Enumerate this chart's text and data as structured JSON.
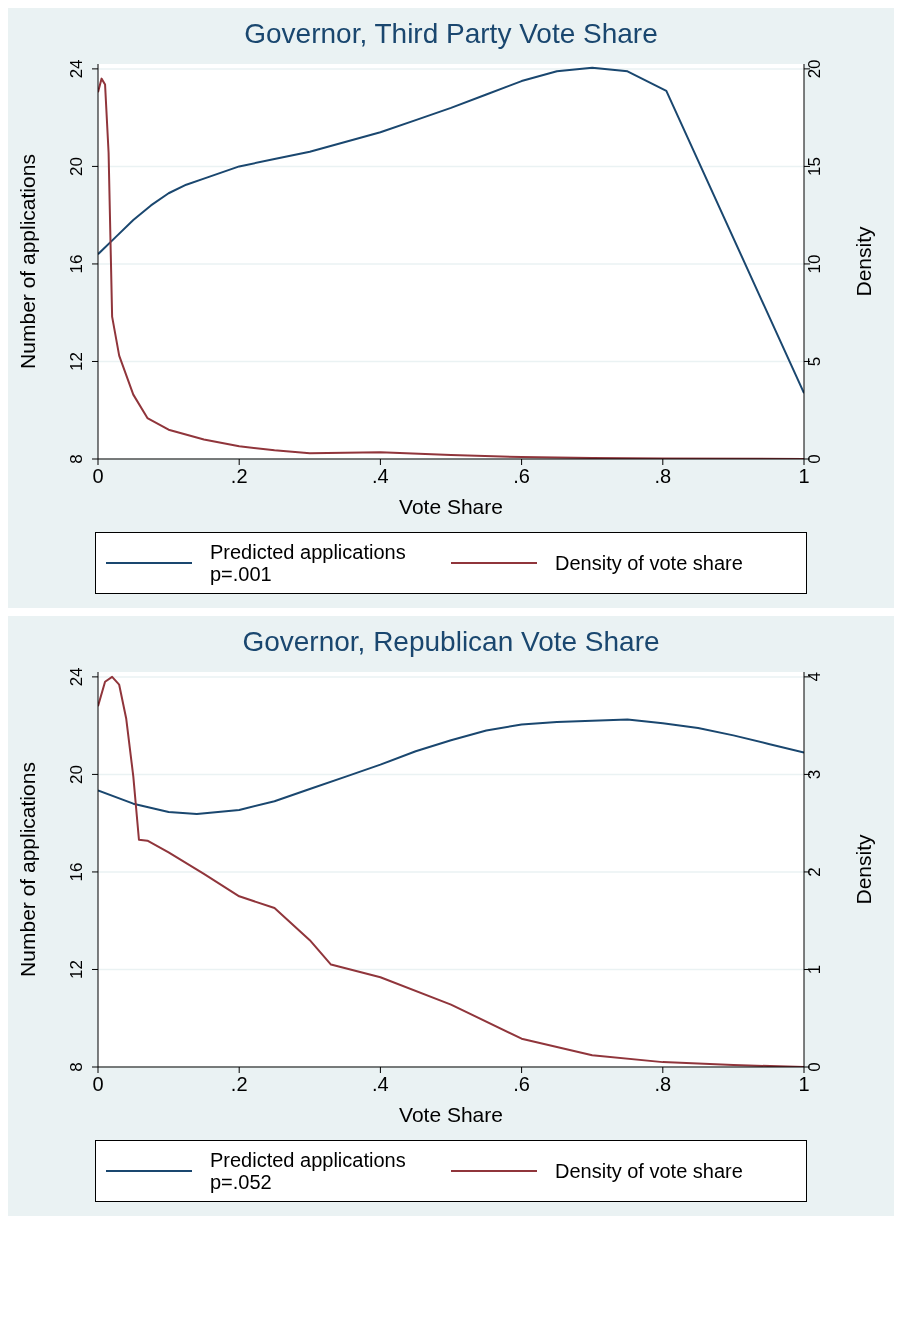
{
  "chart_data": [
    {
      "type": "line",
      "title": "Governor, Third Party Vote Share",
      "xlabel": "Vote Share",
      "ylabel": "Number of applications",
      "y2label": "Density",
      "xlim": [
        0,
        1
      ],
      "xticks": [
        {
          "value": 0,
          "label": "0"
        },
        {
          "value": 0.2,
          "label": ".2"
        },
        {
          "value": 0.4,
          "label": ".4"
        },
        {
          "value": 0.6,
          "label": ".6"
        },
        {
          "value": 0.8,
          "label": ".8"
        },
        {
          "value": 1,
          "label": "1"
        }
      ],
      "ylim": [
        8,
        24.2
      ],
      "yticks": [
        8,
        12,
        16,
        20,
        24
      ],
      "y2lim": [
        0,
        20.25
      ],
      "y2ticks": [
        0,
        5,
        10,
        15,
        20
      ],
      "grid": "y",
      "legend": "bottom",
      "series": [
        {
          "name": "Predicted applications\np=.001",
          "color": "#1a476f",
          "x": [
            0,
            0.025,
            0.05,
            0.075,
            0.1,
            0.125,
            0.15,
            0.2,
            0.25,
            0.3,
            0.35,
            0.4,
            0.45,
            0.5,
            0.55,
            0.6,
            0.65,
            0.7,
            0.75,
            0.805,
            1
          ],
          "values": [
            16.4,
            17.1,
            17.8,
            18.4,
            18.9,
            19.25,
            19.5,
            20.0,
            20.3,
            20.6,
            21.0,
            21.4,
            21.9,
            22.4,
            22.95,
            23.5,
            23.9,
            24.05,
            23.9,
            23.1,
            10.7
          ]
        },
        {
          "name": "Density of vote share",
          "color": "#90353b",
          "axis": "y2",
          "x": [
            0,
            0.005,
            0.01,
            0.015,
            0.02,
            0.03,
            0.05,
            0.07,
            0.1,
            0.15,
            0.2,
            0.25,
            0.3,
            0.4,
            0.5,
            0.6,
            0.7,
            0.8,
            1
          ],
          "values": [
            18.8,
            19.5,
            19.2,
            15.7,
            7.3,
            5.3,
            3.3,
            2.1,
            1.5,
            1.0,
            0.65,
            0.45,
            0.3,
            0.35,
            0.2,
            0.1,
            0.05,
            0.03,
            0
          ]
        }
      ]
    },
    {
      "type": "line",
      "title": "Governor, Republican Vote Share",
      "xlabel": "Vote Share",
      "ylabel": "Number of applications",
      "y2label": "Density",
      "xlim": [
        0,
        1
      ],
      "xticks": [
        {
          "value": 0,
          "label": "0"
        },
        {
          "value": 0.2,
          "label": ".2"
        },
        {
          "value": 0.4,
          "label": ".4"
        },
        {
          "value": 0.6,
          "label": ".6"
        },
        {
          "value": 0.8,
          "label": ".8"
        },
        {
          "value": 1,
          "label": "1"
        }
      ],
      "ylim": [
        8,
        24.2
      ],
      "yticks": [
        8,
        12,
        16,
        20,
        24
      ],
      "y2lim": [
        0,
        4.05
      ],
      "y2ticks": [
        0,
        1,
        2,
        3,
        4
      ],
      "grid": "y",
      "legend": "bottom",
      "series": [
        {
          "name": "Predicted applications\np=.052",
          "color": "#1a476f",
          "x": [
            0,
            0.05,
            0.1,
            0.14,
            0.2,
            0.25,
            0.3,
            0.35,
            0.4,
            0.45,
            0.5,
            0.55,
            0.6,
            0.65,
            0.7,
            0.75,
            0.8,
            0.85,
            0.9,
            0.95,
            1
          ],
          "values": [
            19.34,
            18.8,
            18.46,
            18.38,
            18.54,
            18.9,
            19.4,
            19.9,
            20.4,
            20.95,
            21.4,
            21.8,
            22.05,
            22.15,
            22.2,
            22.25,
            22.1,
            21.9,
            21.6,
            21.25,
            20.9
          ]
        },
        {
          "name": "Density of vote share",
          "color": "#90353b",
          "axis": "y2",
          "x": [
            0,
            0.01,
            0.02,
            0.03,
            0.04,
            0.05,
            0.058,
            0.07,
            0.1,
            0.15,
            0.2,
            0.25,
            0.3,
            0.33,
            0.4,
            0.5,
            0.6,
            0.7,
            0.8,
            0.9,
            1
          ],
          "values": [
            3.7,
            3.95,
            4.0,
            3.92,
            3.57,
            2.98,
            2.33,
            2.32,
            2.2,
            1.98,
            1.75,
            1.63,
            1.3,
            1.05,
            0.92,
            0.64,
            0.29,
            0.12,
            0.05,
            0.02,
            0
          ]
        }
      ]
    }
  ]
}
